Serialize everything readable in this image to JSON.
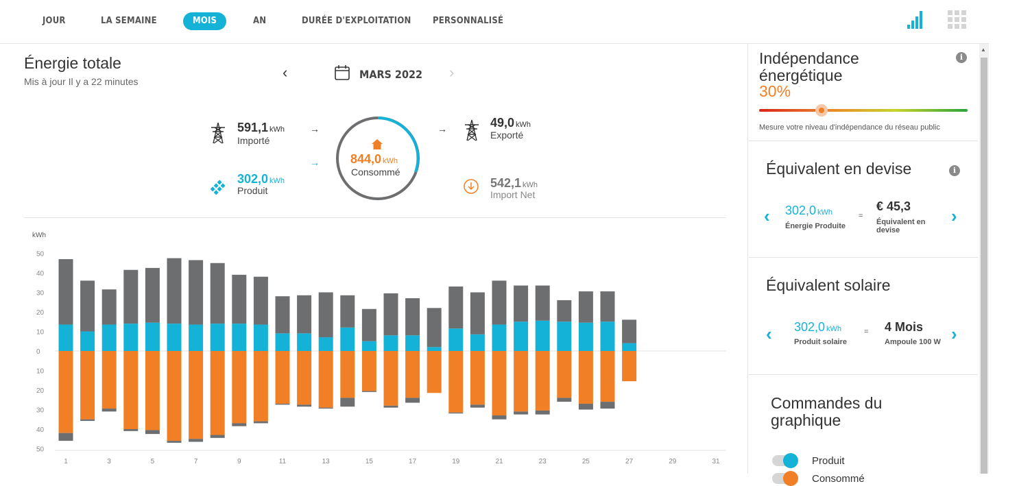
{
  "tabs": [
    {
      "label": "JOUR",
      "active": false
    },
    {
      "label": "LA SEMAINE",
      "active": false
    },
    {
      "label": "MOIS",
      "active": true
    },
    {
      "label": "AN",
      "active": false
    },
    {
      "label": "DURÉE D'EXPLOITATION",
      "active": false
    },
    {
      "label": "PERSONNALISÉ",
      "active": false
    }
  ],
  "view_icons": [
    "bar-chart-icon",
    "grid-icon"
  ],
  "energy": {
    "title": "Énergie totale",
    "updated": "Mis à jour Il y a 22 minutes",
    "period": "MARS 2022",
    "imported": {
      "value": "591,1",
      "unit": "kWh",
      "label": "Importé"
    },
    "produced": {
      "value": "302,0",
      "unit": "kWh",
      "label": "Produit"
    },
    "consumed": {
      "value": "844,0",
      "unit": "kWh",
      "label": "Consommé"
    },
    "exported": {
      "value": "49,0",
      "unit": "kWh",
      "label": "Exporté"
    },
    "net_import": {
      "value": "542,1",
      "unit": "kWh",
      "label": "Import Net"
    }
  },
  "chart_data": {
    "type": "bar",
    "ylabel": "kWh",
    "ylim": [
      -50,
      50
    ],
    "yticks": [
      "50",
      "40",
      "30",
      "20",
      "10",
      "0",
      "10",
      "20",
      "30",
      "40",
      "50"
    ],
    "x": [
      1,
      2,
      3,
      4,
      5,
      6,
      7,
      8,
      9,
      10,
      11,
      12,
      13,
      14,
      15,
      16,
      17,
      18,
      19,
      20,
      21,
      22,
      23,
      24,
      25,
      26,
      27,
      28,
      29,
      30,
      31
    ],
    "xtick_labels": [
      "1",
      "3",
      "5",
      "7",
      "9",
      "11",
      "13",
      "15",
      "17",
      "19",
      "21",
      "23",
      "25",
      "27",
      "29",
      "31"
    ],
    "series": [
      {
        "name": "Produit",
        "color": "#15b2d8",
        "values": [
          13.5,
          10,
          13.5,
          14,
          14.5,
          14,
          13.5,
          14,
          14,
          13.5,
          9,
          9,
          7,
          12,
          5,
          8,
          8,
          2,
          11.5,
          8.5,
          13.5,
          15,
          15.5,
          15,
          14.5,
          15,
          4,
          0,
          0,
          0,
          0
        ]
      },
      {
        "name": "Importé",
        "color": "#6d6e70",
        "values": [
          33.5,
          26,
          18,
          27.5,
          28,
          33.5,
          33,
          31,
          25,
          24.5,
          19,
          19.5,
          23,
          16.5,
          16.5,
          21.5,
          19,
          20,
          21.5,
          21.5,
          22.5,
          18.5,
          18,
          11,
          16,
          15.5,
          12,
          0,
          0,
          0,
          0
        ]
      },
      {
        "name": "Consommé",
        "color": "#f07f25",
        "values": [
          -42,
          -35,
          -29.5,
          -40,
          -40.5,
          -46,
          -45,
          -43,
          -37,
          -36,
          -27,
          -27.5,
          -29,
          -24,
          -20.5,
          -28,
          -24,
          -21.5,
          -31.5,
          -27.5,
          -33,
          -31,
          -30.5,
          -24,
          -27,
          -26,
          -15.5,
          0,
          0,
          0,
          0
        ]
      },
      {
        "name": "Export/Reste",
        "color": "#6d6e70",
        "values": [
          -4,
          -0.8,
          -1.5,
          -1,
          -2,
          -1,
          -1.5,
          -1.5,
          -1.5,
          -1,
          -0.5,
          -1,
          -0.5,
          -4.5,
          -0.5,
          -1,
          -2.5,
          0,
          -0.5,
          -1.5,
          -2,
          -1.5,
          -2,
          -2,
          -3,
          -3.5,
          0,
          0,
          0,
          0,
          0
        ]
      }
    ],
    "grid": false
  },
  "independence": {
    "title_line1": "Indépendance",
    "title_line2": "énergétique",
    "percent": "30%",
    "level": 0.3,
    "note": "Mesure votre niveau d'indépendance du réseau public"
  },
  "currency": {
    "title": "Équivalent en devise",
    "value": "302,0",
    "unit": "kWh",
    "value_label": "Énergie Produite",
    "eq": "=",
    "result": "€ 45,3",
    "result_label_1": "Équivalent en",
    "result_label_2": "devise"
  },
  "solar": {
    "title": "Équivalent solaire",
    "value": "302,0",
    "unit": "kWh",
    "value_label": "Produit solaire",
    "eq": "=",
    "result": "4 Mois",
    "result_label": "Ampoule 100 W"
  },
  "controls": {
    "title_line1": "Commandes du",
    "title_line2": "graphique",
    "items": [
      {
        "label": "Produit",
        "color": "#15b2d8",
        "on": true
      },
      {
        "label": "Consommé",
        "color": "#f07f25",
        "on": true
      }
    ]
  },
  "colors": {
    "accent": "#15b2d8",
    "orange": "#f07f25",
    "grey": "#6d6e70"
  }
}
